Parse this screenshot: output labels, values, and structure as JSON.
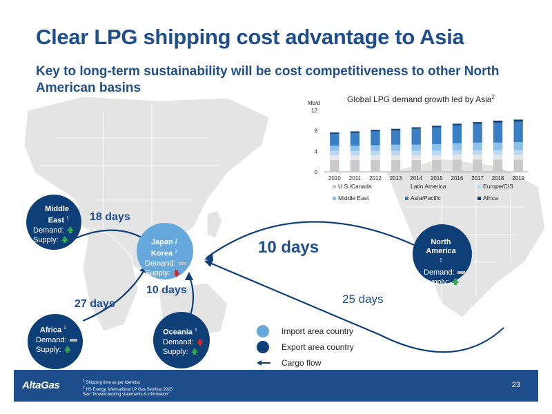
{
  "slide": {
    "title": "Clear LPG shipping cost advantage to Asia",
    "subtitle": "Key to long-term sustainability will be cost competitiveness to other North American basins",
    "page_number": "23",
    "logo_text": "AltaGas",
    "footnotes": [
      "Shipping time as per Idemitsu",
      "HS Energy, International LP Gas Seminar 2015",
      "See \"forward-looking statements & information\""
    ],
    "footnote_marks": [
      "1",
      "2",
      ""
    ]
  },
  "chart": {
    "title": "Global LPG demand growth led by Asia",
    "title_sup": "2",
    "unit": "Mb/d"
  },
  "chart_data": {
    "type": "bar",
    "stacked": true,
    "title": "Global LPG demand growth led by Asia",
    "ylabel": "Mb/d",
    "ylim": [
      0,
      12
    ],
    "yticks": [
      0,
      4,
      8,
      12
    ],
    "categories": [
      "2010",
      "2011",
      "2012",
      "2013",
      "2014",
      "2015",
      "2016",
      "2017",
      "2018",
      "2019"
    ],
    "series": [
      {
        "name": "U.S./Canada",
        "color": "#c9c9c9",
        "values": [
          2.3,
          2.3,
          2.3,
          2.3,
          2.3,
          2.3,
          2.4,
          2.4,
          2.4,
          2.4
        ]
      },
      {
        "name": "Latin America",
        "color": "#e6e6e6",
        "values": [
          0.9,
          0.9,
          0.9,
          0.9,
          0.9,
          0.9,
          0.9,
          0.9,
          0.9,
          0.9
        ]
      },
      {
        "name": "Europe/CIS",
        "color": "#bcd9f1",
        "values": [
          0.9,
          0.9,
          0.9,
          0.9,
          0.9,
          0.9,
          0.9,
          0.9,
          0.9,
          0.9
        ]
      },
      {
        "name": "Middle East",
        "color": "#8cc1e9",
        "values": [
          1.0,
          1.0,
          1.1,
          1.2,
          1.2,
          1.3,
          1.4,
          1.5,
          1.5,
          1.6
        ]
      },
      {
        "name": "Asia/Pacific",
        "color": "#3a7fc4",
        "values": [
          2.3,
          2.5,
          2.7,
          2.8,
          3.1,
          3.3,
          3.5,
          3.7,
          3.9,
          4.0
        ]
      },
      {
        "name": "Africa",
        "color": "#0e3f77",
        "values": [
          0.3,
          0.3,
          0.3,
          0.3,
          0.3,
          0.3,
          0.3,
          0.3,
          0.4,
          0.4
        ]
      }
    ],
    "legend_position": "bottom"
  },
  "regions": {
    "middle_east": {
      "name": "Middle East",
      "sup": "1",
      "demand": "Demand:",
      "supply": "Supply:"
    },
    "japan_korea": {
      "name": "Japan / Korea",
      "sup": "1",
      "demand": "Demand:",
      "supply": "Supply:"
    },
    "africa": {
      "name": "Africa",
      "sup": "1",
      "demand": "Demand:",
      "supply": "Supply:"
    },
    "oceania": {
      "name": "Oceania",
      "sup": "1",
      "demand": "Demand:",
      "supply": "Supply:"
    },
    "north_america": {
      "name": "North America",
      "sup": "1",
      "demand": "Demand:",
      "supply": "Supply:"
    }
  },
  "routes": {
    "middle_east": "18 days",
    "africa": "27 days",
    "oceania": "10 days",
    "north_america": "10 days",
    "gulf": "25 days"
  },
  "legend": {
    "import": "Import area country",
    "export": "Export area country",
    "cargo": "Cargo flow"
  },
  "colors": {
    "title": "#1f4e8c",
    "export": "#0e3f77",
    "import": "#66a8dc",
    "up": "#2fa84f",
    "down": "#d62828",
    "footer": "#1f4e8c"
  }
}
